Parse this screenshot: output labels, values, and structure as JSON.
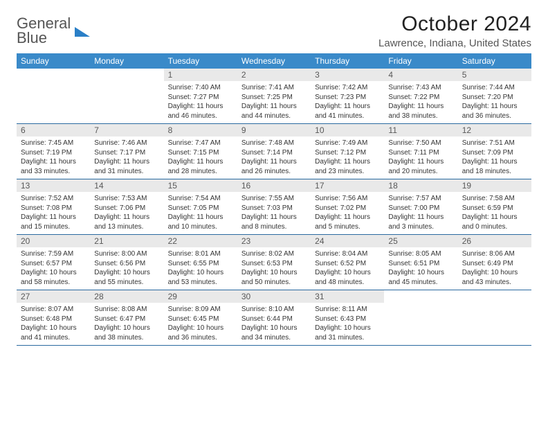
{
  "logo": {
    "line1": "General",
    "line2": "Blue"
  },
  "title": "October 2024",
  "location": "Lawrence, Indiana, United States",
  "weekdays": [
    "Sunday",
    "Monday",
    "Tuesday",
    "Wednesday",
    "Thursday",
    "Friday",
    "Saturday"
  ],
  "colors": {
    "header_bg": "#3a8ac9",
    "week_border": "#2a6aa0",
    "daynum_bg": "#e9e9e9",
    "logo_blue": "#2a7fc7"
  },
  "weeks": [
    [
      {
        "n": "",
        "sr": "",
        "ss": "",
        "dl": ""
      },
      {
        "n": "",
        "sr": "",
        "ss": "",
        "dl": ""
      },
      {
        "n": "1",
        "sr": "Sunrise: 7:40 AM",
        "ss": "Sunset: 7:27 PM",
        "dl": "Daylight: 11 hours and 46 minutes."
      },
      {
        "n": "2",
        "sr": "Sunrise: 7:41 AM",
        "ss": "Sunset: 7:25 PM",
        "dl": "Daylight: 11 hours and 44 minutes."
      },
      {
        "n": "3",
        "sr": "Sunrise: 7:42 AM",
        "ss": "Sunset: 7:23 PM",
        "dl": "Daylight: 11 hours and 41 minutes."
      },
      {
        "n": "4",
        "sr": "Sunrise: 7:43 AM",
        "ss": "Sunset: 7:22 PM",
        "dl": "Daylight: 11 hours and 38 minutes."
      },
      {
        "n": "5",
        "sr": "Sunrise: 7:44 AM",
        "ss": "Sunset: 7:20 PM",
        "dl": "Daylight: 11 hours and 36 minutes."
      }
    ],
    [
      {
        "n": "6",
        "sr": "Sunrise: 7:45 AM",
        "ss": "Sunset: 7:19 PM",
        "dl": "Daylight: 11 hours and 33 minutes."
      },
      {
        "n": "7",
        "sr": "Sunrise: 7:46 AM",
        "ss": "Sunset: 7:17 PM",
        "dl": "Daylight: 11 hours and 31 minutes."
      },
      {
        "n": "8",
        "sr": "Sunrise: 7:47 AM",
        "ss": "Sunset: 7:15 PM",
        "dl": "Daylight: 11 hours and 28 minutes."
      },
      {
        "n": "9",
        "sr": "Sunrise: 7:48 AM",
        "ss": "Sunset: 7:14 PM",
        "dl": "Daylight: 11 hours and 26 minutes."
      },
      {
        "n": "10",
        "sr": "Sunrise: 7:49 AM",
        "ss": "Sunset: 7:12 PM",
        "dl": "Daylight: 11 hours and 23 minutes."
      },
      {
        "n": "11",
        "sr": "Sunrise: 7:50 AM",
        "ss": "Sunset: 7:11 PM",
        "dl": "Daylight: 11 hours and 20 minutes."
      },
      {
        "n": "12",
        "sr": "Sunrise: 7:51 AM",
        "ss": "Sunset: 7:09 PM",
        "dl": "Daylight: 11 hours and 18 minutes."
      }
    ],
    [
      {
        "n": "13",
        "sr": "Sunrise: 7:52 AM",
        "ss": "Sunset: 7:08 PM",
        "dl": "Daylight: 11 hours and 15 minutes."
      },
      {
        "n": "14",
        "sr": "Sunrise: 7:53 AM",
        "ss": "Sunset: 7:06 PM",
        "dl": "Daylight: 11 hours and 13 minutes."
      },
      {
        "n": "15",
        "sr": "Sunrise: 7:54 AM",
        "ss": "Sunset: 7:05 PM",
        "dl": "Daylight: 11 hours and 10 minutes."
      },
      {
        "n": "16",
        "sr": "Sunrise: 7:55 AM",
        "ss": "Sunset: 7:03 PM",
        "dl": "Daylight: 11 hours and 8 minutes."
      },
      {
        "n": "17",
        "sr": "Sunrise: 7:56 AM",
        "ss": "Sunset: 7:02 PM",
        "dl": "Daylight: 11 hours and 5 minutes."
      },
      {
        "n": "18",
        "sr": "Sunrise: 7:57 AM",
        "ss": "Sunset: 7:00 PM",
        "dl": "Daylight: 11 hours and 3 minutes."
      },
      {
        "n": "19",
        "sr": "Sunrise: 7:58 AM",
        "ss": "Sunset: 6:59 PM",
        "dl": "Daylight: 11 hours and 0 minutes."
      }
    ],
    [
      {
        "n": "20",
        "sr": "Sunrise: 7:59 AM",
        "ss": "Sunset: 6:57 PM",
        "dl": "Daylight: 10 hours and 58 minutes."
      },
      {
        "n": "21",
        "sr": "Sunrise: 8:00 AM",
        "ss": "Sunset: 6:56 PM",
        "dl": "Daylight: 10 hours and 55 minutes."
      },
      {
        "n": "22",
        "sr": "Sunrise: 8:01 AM",
        "ss": "Sunset: 6:55 PM",
        "dl": "Daylight: 10 hours and 53 minutes."
      },
      {
        "n": "23",
        "sr": "Sunrise: 8:02 AM",
        "ss": "Sunset: 6:53 PM",
        "dl": "Daylight: 10 hours and 50 minutes."
      },
      {
        "n": "24",
        "sr": "Sunrise: 8:04 AM",
        "ss": "Sunset: 6:52 PM",
        "dl": "Daylight: 10 hours and 48 minutes."
      },
      {
        "n": "25",
        "sr": "Sunrise: 8:05 AM",
        "ss": "Sunset: 6:51 PM",
        "dl": "Daylight: 10 hours and 45 minutes."
      },
      {
        "n": "26",
        "sr": "Sunrise: 8:06 AM",
        "ss": "Sunset: 6:49 PM",
        "dl": "Daylight: 10 hours and 43 minutes."
      }
    ],
    [
      {
        "n": "27",
        "sr": "Sunrise: 8:07 AM",
        "ss": "Sunset: 6:48 PM",
        "dl": "Daylight: 10 hours and 41 minutes."
      },
      {
        "n": "28",
        "sr": "Sunrise: 8:08 AM",
        "ss": "Sunset: 6:47 PM",
        "dl": "Daylight: 10 hours and 38 minutes."
      },
      {
        "n": "29",
        "sr": "Sunrise: 8:09 AM",
        "ss": "Sunset: 6:45 PM",
        "dl": "Daylight: 10 hours and 36 minutes."
      },
      {
        "n": "30",
        "sr": "Sunrise: 8:10 AM",
        "ss": "Sunset: 6:44 PM",
        "dl": "Daylight: 10 hours and 34 minutes."
      },
      {
        "n": "31",
        "sr": "Sunrise: 8:11 AM",
        "ss": "Sunset: 6:43 PM",
        "dl": "Daylight: 10 hours and 31 minutes."
      },
      {
        "n": "",
        "sr": "",
        "ss": "",
        "dl": ""
      },
      {
        "n": "",
        "sr": "",
        "ss": "",
        "dl": ""
      }
    ]
  ]
}
